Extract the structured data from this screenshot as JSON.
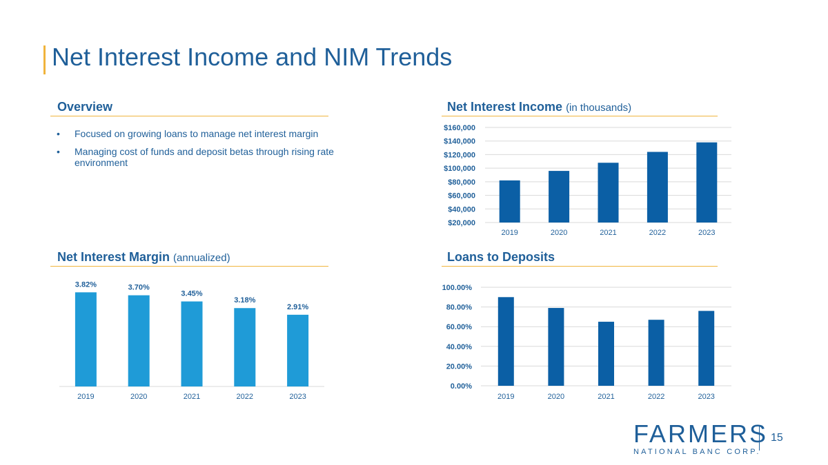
{
  "page": {
    "title": "Net Interest Income and NIM Trends",
    "number": "15"
  },
  "overview": {
    "heading": "Overview",
    "bullets": [
      "Focused on growing loans to manage net interest margin",
      "Managing cost of funds and deposit betas through rising rate environment"
    ]
  },
  "logo": {
    "name": "FARMERS",
    "subtitle": "NATIONAL BANC CORP."
  },
  "colors": {
    "accent": "#f0b43c",
    "primary": "#1f5f99",
    "bar_dark": "#0b5fa5",
    "bar_light": "#1f9bd7"
  },
  "chart_data": [
    {
      "id": "nii",
      "type": "bar",
      "title": "Net Interest Income",
      "subtitle": "(in thousands)",
      "categories": [
        "2019",
        "2020",
        "2021",
        "2022",
        "2023"
      ],
      "values": [
        82000,
        96000,
        108000,
        124000,
        138000
      ],
      "ylim": [
        20000,
        160000
      ],
      "yticks": [
        "$160,000",
        "$140,000",
        "$120,000",
        "$100,000",
        "$80,000",
        "$60,000",
        "$40,000",
        "$20,000"
      ],
      "grid": true
    },
    {
      "id": "nim",
      "type": "bar",
      "title": "Net Interest Margin",
      "subtitle": "(annualized)",
      "categories": [
        "2019",
        "2020",
        "2021",
        "2022",
        "2023"
      ],
      "values": [
        3.82,
        3.7,
        3.45,
        3.18,
        2.91
      ],
      "labels": [
        "3.82%",
        "3.70%",
        "3.45%",
        "3.18%",
        "2.91%"
      ],
      "ylim": [
        0,
        4.5
      ],
      "grid": false
    },
    {
      "id": "ltd",
      "type": "bar",
      "title": "Loans to Deposits",
      "subtitle": "",
      "categories": [
        "2019",
        "2020",
        "2021",
        "2022",
        "2023"
      ],
      "values": [
        90,
        79,
        65,
        67,
        76
      ],
      "ylim": [
        0,
        100
      ],
      "yticks": [
        "100.00%",
        "80.00%",
        "60.00%",
        "40.00%",
        "20.00%",
        "0.00%"
      ],
      "grid": true
    }
  ]
}
